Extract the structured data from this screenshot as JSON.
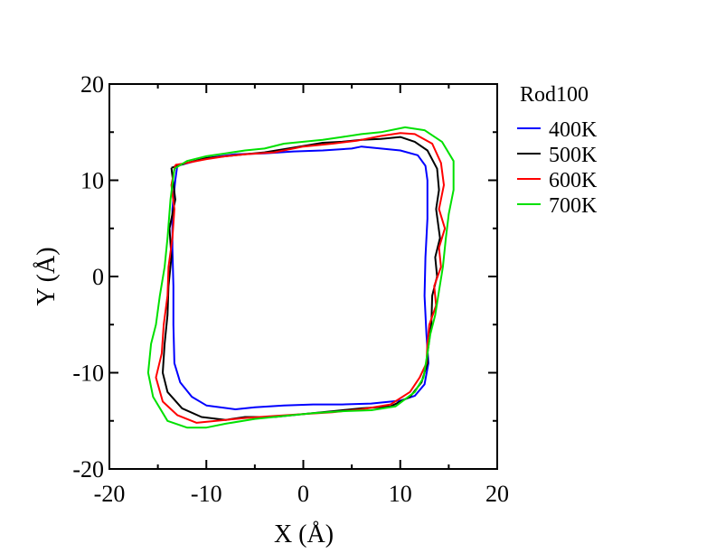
{
  "chart_data": {
    "type": "line",
    "title": "",
    "xlabel": "X (Å)",
    "ylabel": "Y (Å)",
    "xlim": [
      -20,
      20
    ],
    "ylim": [
      -20,
      20
    ],
    "x_ticks": [
      -20,
      -10,
      0,
      10,
      20
    ],
    "y_ticks": [
      -20,
      -10,
      0,
      10,
      20
    ],
    "x_tick_labels": [
      "-20",
      "-10",
      "0",
      "10",
      "20"
    ],
    "y_tick_labels": [
      "-20",
      "-10",
      "0",
      "10",
      "20"
    ],
    "minor_tick_step": 5,
    "grid": false,
    "legend_title": "Rod100",
    "legend_position": "outside-right",
    "series": [
      {
        "name": "400K",
        "color": "#0000ff",
        "points": [
          [
            -13.0,
            11.5
          ],
          [
            -10.0,
            12.3
          ],
          [
            -7.0,
            12.7
          ],
          [
            -4.0,
            12.8
          ],
          [
            -1.0,
            13.0
          ],
          [
            2.0,
            13.1
          ],
          [
            5.0,
            13.3
          ],
          [
            6.0,
            13.5
          ],
          [
            8.0,
            13.3
          ],
          [
            10.0,
            13.1
          ],
          [
            11.8,
            12.6
          ],
          [
            12.6,
            11.5
          ],
          [
            12.8,
            10.0
          ],
          [
            12.8,
            6.0
          ],
          [
            12.6,
            2.0
          ],
          [
            12.5,
            -2.0
          ],
          [
            12.7,
            -6.0
          ],
          [
            12.9,
            -9.0
          ],
          [
            12.5,
            -11.2
          ],
          [
            11.5,
            -12.4
          ],
          [
            10.0,
            -12.9
          ],
          [
            7.0,
            -13.2
          ],
          [
            4.0,
            -13.3
          ],
          [
            1.0,
            -13.3
          ],
          [
            -2.0,
            -13.4
          ],
          [
            -5.0,
            -13.6
          ],
          [
            -7.0,
            -13.8
          ],
          [
            -10.0,
            -13.4
          ],
          [
            -11.5,
            -12.5
          ],
          [
            -12.7,
            -11.0
          ],
          [
            -13.3,
            -9.0
          ],
          [
            -13.4,
            -5.0
          ],
          [
            -13.4,
            -1.0
          ],
          [
            -13.5,
            3.0
          ],
          [
            -13.5,
            7.0
          ],
          [
            -13.2,
            10.0
          ],
          [
            -13.0,
            11.5
          ]
        ]
      },
      {
        "name": "500K",
        "color": "#000000",
        "points": [
          [
            -13.6,
            11.3
          ],
          [
            -12.0,
            11.8
          ],
          [
            -10.0,
            12.3
          ],
          [
            -7.0,
            12.6
          ],
          [
            -4.0,
            12.9
          ],
          [
            -1.0,
            13.4
          ],
          [
            2.0,
            13.9
          ],
          [
            4.0,
            14.0
          ],
          [
            6.0,
            14.2
          ],
          [
            8.0,
            14.3
          ],
          [
            10.0,
            14.5
          ],
          [
            11.5,
            14.0
          ],
          [
            12.8,
            13.1
          ],
          [
            13.8,
            11.2
          ],
          [
            14.0,
            9.0
          ],
          [
            13.7,
            7.0
          ],
          [
            14.1,
            4.0
          ],
          [
            13.6,
            2.0
          ],
          [
            13.8,
            0.0
          ],
          [
            13.3,
            -2.0
          ],
          [
            13.2,
            -5.0
          ],
          [
            12.8,
            -8.0
          ],
          [
            12.8,
            -9.0
          ],
          [
            12.2,
            -11.0
          ],
          [
            11.0,
            -12.5
          ],
          [
            9.0,
            -13.5
          ],
          [
            6.0,
            -13.7
          ],
          [
            3.0,
            -14.0
          ],
          [
            0.0,
            -14.3
          ],
          [
            -3.0,
            -14.6
          ],
          [
            -6.0,
            -14.6
          ],
          [
            -8.0,
            -14.9
          ],
          [
            -10.5,
            -14.6
          ],
          [
            -12.5,
            -13.7
          ],
          [
            -14.0,
            -12.0
          ],
          [
            -14.5,
            -10.0
          ],
          [
            -14.3,
            -7.0
          ],
          [
            -14.0,
            -4.0
          ],
          [
            -13.9,
            -1.0
          ],
          [
            -13.6,
            2.0
          ],
          [
            -13.8,
            5.0
          ],
          [
            -13.2,
            8.0
          ],
          [
            -13.6,
            11.3
          ]
        ]
      },
      {
        "name": "600K",
        "color": "#ff0000",
        "points": [
          [
            -13.2,
            11.6
          ],
          [
            -12.0,
            11.8
          ],
          [
            -10.0,
            12.2
          ],
          [
            -8.0,
            12.5
          ],
          [
            -6.0,
            12.7
          ],
          [
            -3.0,
            12.9
          ],
          [
            0.0,
            13.5
          ],
          [
            3.0,
            13.8
          ],
          [
            5.5,
            14.1
          ],
          [
            8.0,
            14.6
          ],
          [
            10.0,
            14.9
          ],
          [
            11.5,
            14.8
          ],
          [
            13.3,
            13.8
          ],
          [
            14.2,
            11.8
          ],
          [
            14.5,
            9.5
          ],
          [
            14.0,
            7.0
          ],
          [
            14.6,
            5.0
          ],
          [
            14.0,
            3.0
          ],
          [
            14.2,
            1.0
          ],
          [
            13.5,
            -1.0
          ],
          [
            13.7,
            -3.0
          ],
          [
            13.0,
            -5.0
          ],
          [
            12.8,
            -7.0
          ],
          [
            12.7,
            -9.0
          ],
          [
            12.0,
            -10.5
          ],
          [
            11.0,
            -12.0
          ],
          [
            9.0,
            -13.3
          ],
          [
            6.0,
            -13.8
          ],
          [
            3.0,
            -14.1
          ],
          [
            0.0,
            -14.3
          ],
          [
            -3.0,
            -14.5
          ],
          [
            -6.0,
            -14.7
          ],
          [
            -9.0,
            -15.0
          ],
          [
            -11.0,
            -15.2
          ],
          [
            -13.0,
            -14.4
          ],
          [
            -14.5,
            -13.0
          ],
          [
            -15.2,
            -10.5
          ],
          [
            -14.6,
            -8.0
          ],
          [
            -14.4,
            -5.0
          ],
          [
            -14.0,
            -2.0
          ],
          [
            -13.9,
            1.0
          ],
          [
            -13.5,
            4.0
          ],
          [
            -13.3,
            7.0
          ],
          [
            -13.6,
            9.5
          ],
          [
            -13.2,
            11.6
          ]
        ]
      },
      {
        "name": "700K",
        "color": "#00e000",
        "points": [
          [
            -13.3,
            11.2
          ],
          [
            -12.0,
            12.0
          ],
          [
            -10.0,
            12.5
          ],
          [
            -8.0,
            12.8
          ],
          [
            -6.0,
            13.1
          ],
          [
            -4.0,
            13.3
          ],
          [
            -2.0,
            13.8
          ],
          [
            0.0,
            14.0
          ],
          [
            2.0,
            14.2
          ],
          [
            4.0,
            14.5
          ],
          [
            6.0,
            14.8
          ],
          [
            8.0,
            15.0
          ],
          [
            10.5,
            15.5
          ],
          [
            12.5,
            15.2
          ],
          [
            14.3,
            14.0
          ],
          [
            15.5,
            12.0
          ],
          [
            15.5,
            9.0
          ],
          [
            15.0,
            6.5
          ],
          [
            14.7,
            4.0
          ],
          [
            14.4,
            1.0
          ],
          [
            14.0,
            -1.5
          ],
          [
            13.6,
            -4.0
          ],
          [
            13.1,
            -6.0
          ],
          [
            12.8,
            -8.0
          ],
          [
            12.4,
            -10.5
          ],
          [
            11.5,
            -12.0
          ],
          [
            9.5,
            -13.5
          ],
          [
            7.0,
            -13.9
          ],
          [
            4.0,
            -14.0
          ],
          [
            1.0,
            -14.2
          ],
          [
            -2.0,
            -14.5
          ],
          [
            -5.0,
            -14.8
          ],
          [
            -8.0,
            -15.3
          ],
          [
            -10.0,
            -15.7
          ],
          [
            -12.0,
            -15.7
          ],
          [
            -14.0,
            -15.0
          ],
          [
            -15.5,
            -12.5
          ],
          [
            -16.0,
            -10.0
          ],
          [
            -15.7,
            -7.0
          ],
          [
            -15.2,
            -5.0
          ],
          [
            -14.8,
            -2.0
          ],
          [
            -14.3,
            1.0
          ],
          [
            -14.0,
            4.0
          ],
          [
            -13.7,
            8.0
          ],
          [
            -13.3,
            11.2
          ]
        ]
      }
    ]
  }
}
